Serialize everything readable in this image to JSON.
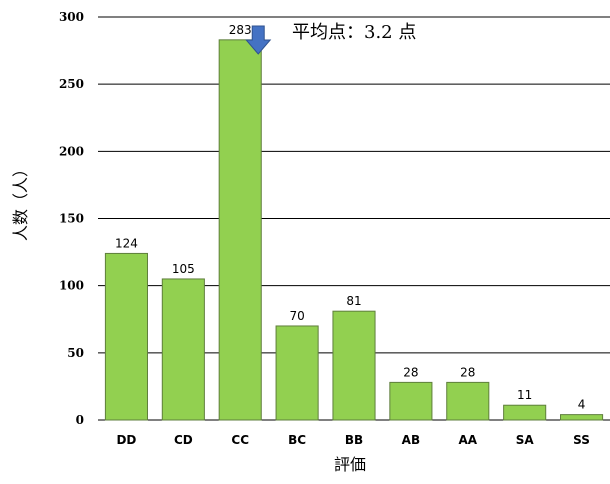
{
  "chart_data": {
    "type": "bar",
    "categories": [
      "DD",
      "CD",
      "CC",
      "BC",
      "BB",
      "AB",
      "AA",
      "SA",
      "SS"
    ],
    "values": [
      124,
      105,
      283,
      70,
      81,
      28,
      28,
      11,
      4
    ],
    "data_labels": [
      "124",
      "105",
      "283",
      "70",
      "81",
      "28",
      "28",
      "11",
      "4"
    ],
    "xlabel": "評価",
    "ylabel": "人数（人）",
    "ylim": [
      0,
      300
    ],
    "yticks": [
      "0",
      "50",
      "100",
      "150",
      "200",
      "250",
      "300"
    ],
    "grid": true,
    "legend": "none",
    "annotation": {
      "text": "平均点：3.2 点",
      "points_to": "CC"
    },
    "colors": {
      "bar_fill": "#92D050",
      "bar_stroke": "#5F7F3C",
      "arrow_fill": "#4472C4",
      "arrow_stroke": "#2F528F",
      "grid": "#000000"
    }
  }
}
